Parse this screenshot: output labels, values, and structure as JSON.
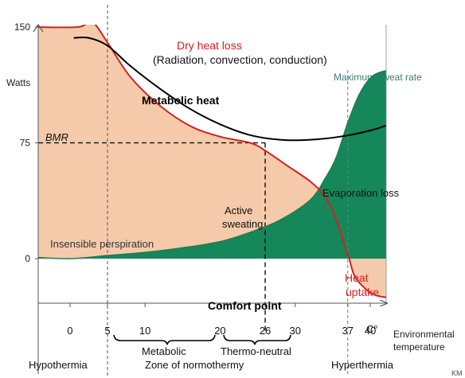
{
  "chart_data": {
    "type": "area",
    "title": "",
    "xlabel": "Environmental temperature",
    "x_unit": "C°",
    "ylabel": "Watts",
    "xlim": [
      -5,
      45
    ],
    "ylim": [
      -40,
      152
    ],
    "x_ticks": [
      0,
      5,
      10,
      20,
      26,
      30,
      37,
      40
    ],
    "y_ticks": [
      0,
      75,
      150
    ],
    "series": [
      {
        "name": "Metabolic heat",
        "kind": "line",
        "color": "#000000",
        "x": [
          0.5,
          2.5,
          5,
          8,
          12,
          16,
          20,
          24,
          28,
          32,
          36,
          40,
          43,
          45
        ],
        "y": [
          143,
          143,
          138,
          125,
          110,
          97,
          87,
          80,
          77,
          77,
          79,
          83,
          88,
          94
        ]
      },
      {
        "name": "Dry heat loss (Radiation, convection, conduction)",
        "kind": "area",
        "color": "#d42020",
        "fill": "#f5caaa",
        "x": [
          -5,
          1,
          3,
          5,
          8,
          12,
          16,
          20,
          24,
          26,
          29,
          32,
          34,
          35.5,
          36.5,
          37.2,
          38,
          40,
          42,
          44,
          45
        ],
        "y": [
          150,
          150,
          153,
          140,
          118,
          99,
          86,
          79,
          75,
          70,
          60,
          50,
          40,
          25,
          10,
          0,
          -12,
          -22,
          -25,
          -25,
          -22
        ]
      },
      {
        "name": "Evaporation loss",
        "kind": "area",
        "color": "#1e7e4e",
        "fill": "#15875a",
        "x": [
          -5,
          0,
          5,
          10,
          15,
          20,
          24,
          28,
          32,
          34,
          35.5,
          37,
          38.5,
          40,
          41.5,
          43,
          45
        ],
        "y": [
          1,
          0,
          2,
          4,
          7,
          11,
          17,
          25,
          38,
          52,
          66,
          88,
          106,
          117,
          121,
          122,
          122
        ]
      }
    ],
    "reference_lines": [
      {
        "axis": "x",
        "value": 5,
        "style": "dashed"
      },
      {
        "axis": "x",
        "value": 37,
        "style": "dashed"
      },
      {
        "axis": "y",
        "value": 75,
        "label": "BMR",
        "style": "dashed"
      },
      {
        "axis": "x",
        "value": 26,
        "label": "Comfort point",
        "style": "dashed"
      }
    ],
    "annotations": {
      "dry_heat_loss": "Dry heat loss",
      "dry_heat_loss_detail": "(Radiation, convection, conduction)",
      "metabolic_heat": "Metabolic heat",
      "max_sweat_rate": "Maximum sweat rate",
      "bmr": "BMR",
      "evaporation_loss": "Evaporation loss",
      "active_sweating_1": "Active",
      "active_sweating_2": "sweating",
      "insensible_perspiration": "Insensible perspiration",
      "heat_uptake_1": "Heat",
      "heat_uptake_2": "uptake",
      "comfort_point": "Comfort point",
      "x_axis_label_1": "Environmental",
      "x_axis_label_2": "temperature",
      "temp_unit": "C°",
      "author_mark": "KM"
    },
    "zones": {
      "hypothermia": "Hypothermia",
      "metabolic": "Metabolic",
      "thermo_neutral": "Thermo-neutral",
      "normothermy": "Zone of normothermy",
      "hyperthermia": "Hyperthermia"
    }
  }
}
